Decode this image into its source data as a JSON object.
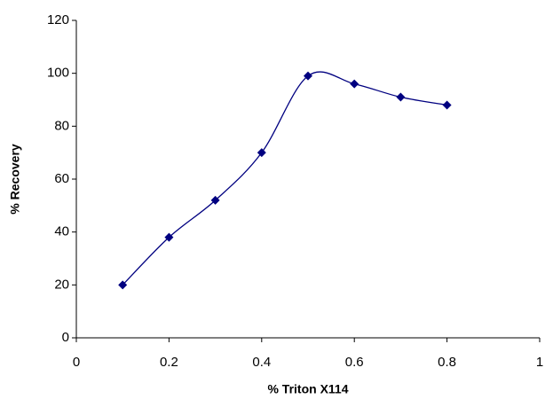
{
  "chart_data": {
    "type": "line",
    "smooth": true,
    "x": [
      0.1,
      0.2,
      0.3,
      0.4,
      0.5,
      0.6,
      0.7,
      0.8
    ],
    "values": [
      20,
      38,
      52,
      70,
      99,
      96,
      91,
      88
    ],
    "color": "#000080",
    "marker": "diamond",
    "xlabel": "% Triton X114",
    "ylabel": "% Recovery",
    "xlim": [
      0,
      1
    ],
    "xticks": [
      0,
      0.2,
      0.4,
      0.6,
      0.8,
      1
    ],
    "ylim": [
      0,
      120
    ],
    "yticks": [
      0,
      20,
      40,
      60,
      80,
      100,
      120
    ],
    "grid": false
  }
}
